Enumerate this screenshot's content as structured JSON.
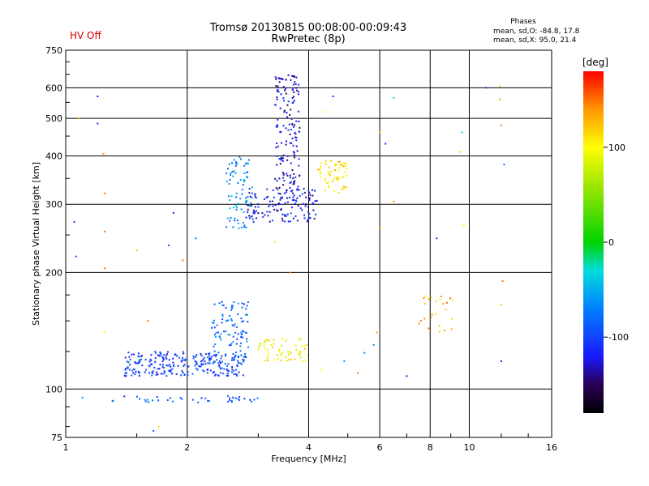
{
  "header": {
    "title_line1": "Tromsø 20130815 00:08:00-00:09:43",
    "title_line2": "RwPretec (8p)",
    "status": "HV Off",
    "phases_label": "Phases",
    "stat_o": "mean, sd,O: -84.8, 17.8",
    "stat_x": "mean, sd,X:  95.0, 21.4"
  },
  "colors": {
    "status": "#d40000",
    "grid": "#000000",
    "frame": "#000000"
  },
  "colorbar": {
    "unit": "[deg]",
    "range": [
      -180,
      180
    ],
    "ticks": [
      {
        "value": 100,
        "label": "100"
      },
      {
        "value": 0,
        "label": "0"
      },
      {
        "value": -100,
        "label": "-100"
      }
    ],
    "stops": [
      [
        -180,
        "#000000"
      ],
      [
        -150,
        "#2a0055"
      ],
      [
        -120,
        "#1a1aff"
      ],
      [
        -70,
        "#0080ff"
      ],
      [
        -30,
        "#00dcdc"
      ],
      [
        0,
        "#00d200"
      ],
      [
        60,
        "#a0e600"
      ],
      [
        100,
        "#ffff00"
      ],
      [
        140,
        "#ff9600"
      ],
      [
        180,
        "#ff0000"
      ]
    ]
  },
  "chart_data": {
    "type": "scatter",
    "title": "Tromsø 20130815 00:08:00-00:09:43",
    "subtitle": "RwPretec (8p)",
    "xlabel": "Frequency [MHz]",
    "ylabel": "Stationary phase Virtual Height [km]",
    "x_scale": "log",
    "y_scale": "log",
    "xlim": [
      1,
      16
    ],
    "ylim": [
      75,
      750
    ],
    "grid": true,
    "x_ticks": [
      {
        "value": 1,
        "label": "1"
      },
      {
        "value": 2,
        "label": "2"
      },
      {
        "value": 4,
        "label": "4"
      },
      {
        "value": 6,
        "label": "6"
      },
      {
        "value": 8,
        "label": "8"
      },
      {
        "value": 10,
        "label": "10"
      },
      {
        "value": 16,
        "label": "16"
      }
    ],
    "y_ticks": [
      {
        "value": 75,
        "label": "75"
      },
      {
        "value": 100,
        "label": "100"
      },
      {
        "value": 200,
        "label": "200"
      },
      {
        "value": 300,
        "label": "300"
      },
      {
        "value": 400,
        "label": "400"
      },
      {
        "value": 500,
        "label": "500"
      },
      {
        "value": 600,
        "label": "600"
      },
      {
        "value": 750,
        "label": "750"
      }
    ],
    "color_encoding": "phase [deg]",
    "clusters": [
      {
        "freq": [
          1.3,
          3.0
        ],
        "height": [
          92,
          96
        ],
        "phase": -90,
        "count": 40
      },
      {
        "freq": [
          1.4,
          2.8
        ],
        "height": [
          108,
          125
        ],
        "phase": -100,
        "count": 260
      },
      {
        "freq": [
          2.3,
          2.85
        ],
        "height": [
          120,
          170
        ],
        "phase": -80,
        "count": 90
      },
      {
        "freq": [
          3.0,
          4.0
        ],
        "height": [
          118,
          135
        ],
        "phase": 100,
        "count": 60
      },
      {
        "freq": [
          2.5,
          2.9
        ],
        "height": [
          260,
          400
        ],
        "phase": -65,
        "count": 80
      },
      {
        "freq": [
          2.8,
          4.2
        ],
        "height": [
          270,
          330
        ],
        "phase": -120,
        "count": 140
      },
      {
        "freq": [
          3.3,
          3.8
        ],
        "height": [
          330,
          650
        ],
        "phase": -130,
        "count": 150
      },
      {
        "freq": [
          4.2,
          5.0
        ],
        "height": [
          320,
          390
        ],
        "phase": 110,
        "count": 60
      },
      {
        "freq": [
          7.5,
          9.2
        ],
        "height": [
          140,
          175
        ],
        "phase": 130,
        "count": 25
      }
    ],
    "scatter_points": [
      {
        "freq": 1.2,
        "height": 570,
        "phase": -120
      },
      {
        "freq": 1.2,
        "height": 485,
        "phase": -110
      },
      {
        "freq": 1.08,
        "height": 500,
        "phase": 130
      },
      {
        "freq": 1.24,
        "height": 405,
        "phase": 140
      },
      {
        "freq": 1.25,
        "height": 320,
        "phase": 150
      },
      {
        "freq": 1.05,
        "height": 270,
        "phase": -100
      },
      {
        "freq": 1.25,
        "height": 255,
        "phase": 150
      },
      {
        "freq": 1.06,
        "height": 220,
        "phase": -100
      },
      {
        "freq": 1.25,
        "height": 205,
        "phase": 150
      },
      {
        "freq": 1.5,
        "height": 228,
        "phase": 60
      },
      {
        "freq": 1.25,
        "height": 140,
        "phase": 90
      },
      {
        "freq": 1.8,
        "height": 235,
        "phase": -90
      },
      {
        "freq": 2.1,
        "height": 245,
        "phase": -80
      },
      {
        "freq": 1.85,
        "height": 285,
        "phase": -120
      },
      {
        "freq": 1.95,
        "height": 215,
        "phase": 150
      },
      {
        "freq": 4.6,
        "height": 570,
        "phase": -110
      },
      {
        "freq": 4.4,
        "height": 520,
        "phase": 100
      },
      {
        "freq": 6.0,
        "height": 460,
        "phase": 130
      },
      {
        "freq": 6.2,
        "height": 430,
        "phase": -120
      },
      {
        "freq": 6.5,
        "height": 565,
        "phase": -20
      },
      {
        "freq": 6.5,
        "height": 305,
        "phase": 140
      },
      {
        "freq": 6.0,
        "height": 260,
        "phase": 140
      },
      {
        "freq": 8.3,
        "height": 245,
        "phase": -110
      },
      {
        "freq": 9.6,
        "height": 460,
        "phase": -40
      },
      {
        "freq": 9.5,
        "height": 410,
        "phase": 120
      },
      {
        "freq": 9.7,
        "height": 265,
        "phase": 100
      },
      {
        "freq": 11.0,
        "height": 600,
        "phase": -110
      },
      {
        "freq": 11.9,
        "height": 605,
        "phase": 120
      },
      {
        "freq": 11.9,
        "height": 560,
        "phase": 130
      },
      {
        "freq": 12.0,
        "height": 480,
        "phase": 150
      },
      {
        "freq": 12.2,
        "height": 380,
        "phase": -80
      },
      {
        "freq": 12.1,
        "height": 190,
        "phase": 150
      },
      {
        "freq": 12.0,
        "height": 165,
        "phase": 130
      },
      {
        "freq": 12.0,
        "height": 118,
        "phase": -120
      },
      {
        "freq": 4.9,
        "height": 118,
        "phase": -60
      },
      {
        "freq": 5.3,
        "height": 110,
        "phase": 150
      },
      {
        "freq": 5.5,
        "height": 124,
        "phase": -70
      },
      {
        "freq": 5.8,
        "height": 130,
        "phase": -60
      },
      {
        "freq": 7.0,
        "height": 108,
        "phase": -120
      },
      {
        "freq": 4.3,
        "height": 112,
        "phase": 100
      },
      {
        "freq": 3.6,
        "height": 200,
        "phase": 150
      },
      {
        "freq": 3.3,
        "height": 240,
        "phase": 110
      },
      {
        "freq": 5.9,
        "height": 140,
        "phase": 140
      },
      {
        "freq": 1.6,
        "height": 150,
        "phase": 150
      },
      {
        "freq": 1.1,
        "height": 95,
        "phase": -60
      },
      {
        "freq": 1.7,
        "height": 80,
        "phase": 110
      },
      {
        "freq": 1.65,
        "height": 78,
        "phase": -90
      }
    ]
  }
}
